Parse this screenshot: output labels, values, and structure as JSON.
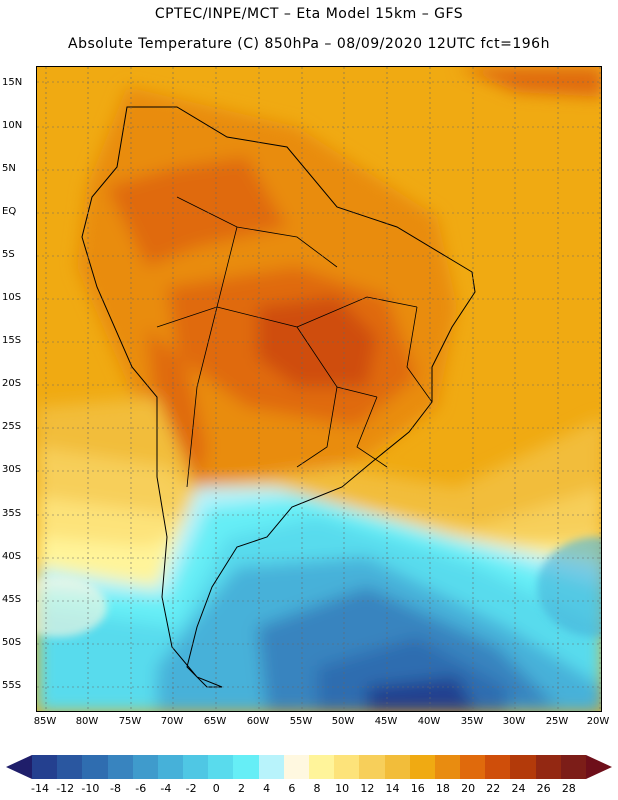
{
  "header": {
    "line1": "CPTEC/INPE/MCT –   Eta Model 15km – GFS",
    "line2": "Absolute Temperature (C) 850hPa – 08/09/2020 12UTC fct=196h"
  },
  "axes": {
    "lat_labels": [
      "15N",
      "10N",
      "5N",
      "EQ",
      "5S",
      "10S",
      "15S",
      "20S",
      "25S",
      "30S",
      "35S",
      "40S",
      "45S",
      "50S",
      "55S"
    ],
    "lon_labels": [
      "85W",
      "80W",
      "75W",
      "70W",
      "65W",
      "60W",
      "55W",
      "50W",
      "45W",
      "40W",
      "35W",
      "30W",
      "25W",
      "20W"
    ]
  },
  "colorbar": {
    "labels": [
      "-14",
      "-12",
      "-10",
      "-8",
      "-6",
      "-4",
      "-2",
      "0",
      "2",
      "4",
      "6",
      "8",
      "10",
      "12",
      "14",
      "16",
      "18",
      "20",
      "22",
      "24",
      "26",
      "28"
    ],
    "colors": [
      "#24408f",
      "#2a57a0",
      "#2f6db0",
      "#3884bf",
      "#3f9bcc",
      "#46b1d9",
      "#4fc7e4",
      "#59dbed",
      "#66eef6",
      "#b8f3fb",
      "#fff8e0",
      "#fff49a",
      "#fde37a",
      "#f7cf5a",
      "#f2bd3a",
      "#f0aa12",
      "#e98c10",
      "#e06a0c",
      "#cf4e0a",
      "#b33a0a",
      "#932812",
      "#7c1d18"
    ],
    "low_color": "#1f1e6a",
    "high_color": "#6e0f1a"
  }
}
